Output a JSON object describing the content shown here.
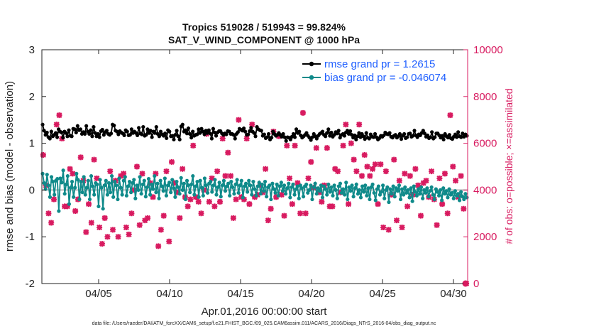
{
  "chart_data": {
    "type": "line",
    "title": "Tropics 519028 / 519943 = 99.824%",
    "subtitle": "SAT_V_WIND_COMPONENT @ 1000 hPa",
    "xlabel": "Apr.01,2016 00:00:00 start",
    "ylabel": "rmse and bias (model - observation)",
    "ylabel_right": "# of obs: o=possible; ×=assimilated",
    "xlim": [
      1,
      31
    ],
    "ylim": [
      -2,
      3
    ],
    "ylim_right": [
      0,
      10000
    ],
    "x_ticks": [
      5,
      10,
      15,
      20,
      25,
      30
    ],
    "x_tick_labels": [
      "04/05",
      "04/10",
      "04/15",
      "04/20",
      "04/25",
      "04/30"
    ],
    "y_ticks": [
      -2,
      -1,
      0,
      1,
      2,
      3
    ],
    "y_tick_labels": [
      "-2",
      "-1",
      "0",
      "1",
      "2",
      "3"
    ],
    "y_ticks_right": [
      0,
      2000,
      4000,
      6000,
      8000,
      10000
    ],
    "y_tick_labels_right": [
      "0",
      "2000",
      "4000",
      "6000",
      "8000",
      "10000"
    ],
    "footnote": "data file: /Users/raeder/DAI/ATM_forcXX/CAM6_setup/f.e21.FHIST_BGC.f09_025.CAM6assim.011/ACARS_2016/Diags_NTrS_2016-04/obs_diag_output.nc",
    "legend_position": "top-right",
    "series": [
      {
        "name": "rmse grand pr = 1.2615",
        "axis": "left",
        "color": "#000000",
        "values": [
          1.4,
          1.27,
          1.18,
          1.23,
          1.13,
          1.1,
          1.25,
          1.15,
          1.18,
          1.22,
          1.13,
          1.3,
          1.25,
          1.23,
          1.12,
          1.25,
          1.22,
          1.15,
          1.28,
          1.16,
          1.15,
          1.31,
          1.3,
          1.23,
          1.37,
          1.28,
          1.3,
          1.2,
          1.24,
          1.2,
          1.37,
          1.25,
          1.2,
          1.28,
          1.15,
          1.35,
          1.22,
          1.15,
          1.2,
          1.13,
          1.26,
          1.29,
          1.18,
          1.24,
          1.27,
          1.2,
          1.18,
          1.21,
          1.4,
          1.38,
          1.27,
          1.25,
          1.19,
          1.26,
          1.23,
          1.21,
          1.17,
          1.28,
          1.25,
          1.17,
          1.18,
          1.3,
          1.22,
          1.25,
          1.22,
          1.17,
          1.33,
          1.21,
          1.19,
          1.35,
          1.16,
          1.18,
          1.3,
          1.22,
          1.27,
          1.13,
          1.25,
          1.22,
          1.35,
          1.2,
          1.15,
          1.25,
          1.19,
          1.16,
          1.21,
          1.11,
          1.28,
          1.25,
          1.15,
          1.16,
          1.08,
          1.18,
          1.27,
          1.15,
          1.08,
          1.36,
          1.4,
          1.25,
          1.28,
          1.21,
          1.32,
          1.2,
          1.12,
          1.25,
          1.16,
          1.18,
          1.19,
          1.3,
          1.22,
          1.31,
          1.25,
          1.19,
          1.27,
          1.22,
          1.28,
          1.21,
          1.1,
          1.31,
          1.23,
          1.16,
          1.23,
          1.26,
          1.26,
          1.21,
          1.18,
          1.21,
          1.19,
          1.26,
          1.25,
          1.2,
          1.2,
          1.18,
          1.1,
          1.2,
          1.24,
          1.31,
          1.29,
          1.27,
          1.32,
          1.25,
          1.18,
          1.19,
          1.26,
          1.33,
          1.25,
          1.22,
          1.15,
          1.35,
          1.3,
          1.28,
          1.27,
          1.16,
          1.19,
          1.11,
          1.13,
          1.2,
          1.08,
          1.12,
          1.25,
          1.2,
          1.16,
          1.18,
          1.22,
          1.18,
          1.14,
          1.2,
          1.13,
          1.05,
          1.13,
          1.12,
          1.08,
          1.14,
          1.2,
          1.13,
          1.3,
          1.22,
          1.25,
          1.17,
          1.12,
          1.15,
          1.18,
          1.22,
          1.16,
          1.12,
          1.07,
          1.13,
          1.2,
          1.15,
          1.1,
          1.16,
          1.2,
          1.22,
          1.25,
          1.18,
          1.15,
          1.22,
          1.3,
          1.16,
          1.23,
          1.14,
          1.18,
          1.24,
          1.21,
          1.27,
          1.12,
          1.18,
          1.2,
          1.16,
          1.23,
          1.27,
          1.2,
          1.26,
          1.18,
          1.12,
          1.17,
          1.08,
          1.15,
          1.22,
          1.13,
          1.2,
          1.15,
          1.09,
          1.22,
          1.12,
          1.1,
          1.19,
          1.14,
          1.13,
          1.2,
          1.13,
          1.08,
          1.11,
          1.16,
          1.14,
          1.17,
          1.23,
          1.2,
          1.19,
          1.22,
          1.14,
          1.12,
          1.16,
          1.18,
          1.12,
          1.15,
          1.2,
          1.09,
          1.16,
          1.2,
          1.11,
          1.13,
          1.2,
          1.21,
          1.14,
          1.16,
          1.27,
          1.17,
          1.13,
          1.19,
          1.17,
          1.22,
          1.27,
          1.21,
          1.14,
          1.17,
          1.11,
          1.13,
          1.24,
          1.1,
          1.13,
          1.21,
          1.21,
          1.17,
          1.12,
          1.16,
          1.08,
          1.2,
          1.15,
          1.12,
          1.18,
          1.11,
          1.09,
          1.14,
          1.19,
          1.13,
          1.24,
          1.15,
          1.13,
          1.21,
          1.14,
          1.19,
          1.16
        ]
      },
      {
        "name": "bias grand pr = -0.046074",
        "axis": "left",
        "color": "#0f8a8a",
        "values": [
          0.35,
          0.15,
          0.02,
          0.33,
          0.1,
          -0.15,
          0.28,
          0.18,
          -0.1,
          0.2,
          0.24,
          -0.45,
          0.25,
          0.16,
          0.42,
          -0.08,
          0.12,
          0.3,
          -0.3,
          0.05,
          0.18,
          -0.15,
          0.05,
          0.35,
          0.22,
          -0.2,
          0.18,
          -0.05,
          0.28,
          -0.1,
          0.05,
          0.2,
          -0.2,
          0.3,
          0.08,
          -0.1,
          0.15,
          0.12,
          -0.35,
          0.22,
          0.05,
          -0.4,
          0.1,
          0.2,
          -0.1,
          0.15,
          -0.05,
          0.3,
          -0.15,
          0.18,
          0.1,
          -0.2,
          0.25,
          0.05,
          -0.1,
          0.2,
          0.28,
          -0.12,
          0.08,
          0.18,
          -0.05,
          0.15,
          0.22,
          -0.18,
          0.1,
          0.0,
          0.28,
          -0.08,
          0.12,
          0.2,
          -0.14,
          0.06,
          0.24,
          -0.1,
          0.12,
          0.02,
          0.3,
          -0.05,
          0.14,
          -0.18,
          0.2,
          0.08,
          -0.02,
          0.25,
          -0.12,
          0.1,
          0.16,
          -0.05,
          0.22,
          0.04,
          -0.15,
          0.18,
          0.06,
          -0.08,
          0.26,
          0.0,
          0.14,
          -0.2,
          0.2,
          0.1,
          -0.05,
          0.12,
          0.3,
          -0.1,
          0.08,
          0.18,
          -0.15,
          0.2,
          0.05,
          -0.12,
          0.25,
          0.1,
          -0.06,
          0.14,
          0.18,
          -0.04,
          0.1,
          0.22,
          -0.1,
          0.06,
          0.16,
          -0.14,
          0.1,
          0.2,
          -0.02,
          0.08,
          0.14,
          -0.12,
          0.18,
          0.06,
          -0.08,
          0.12,
          0.22,
          -0.06,
          0.1,
          0.2,
          -0.16,
          0.08,
          0.14,
          -0.04,
          0.2,
          0.1,
          -0.1,
          0.18,
          0.02,
          -0.12,
          0.08,
          0.16,
          -0.08,
          0.12,
          -0.02,
          0.18,
          -0.14,
          0.06,
          0.1,
          -0.2,
          0.14,
          0.02,
          -0.06,
          0.12,
          -0.12,
          0.08,
          0.16,
          -0.02,
          0.1,
          -0.08,
          0.04,
          0.14,
          -0.16,
          0.06,
          0.12,
          -0.1,
          0.02,
          0.08,
          -0.18,
          0.1,
          0.04,
          -0.14,
          0.08,
          0.12,
          -0.06,
          0.0,
          0.1,
          -0.2,
          0.06,
          0.14,
          -0.08,
          0.04,
          -0.02,
          0.1,
          -0.16,
          0.08,
          0.02,
          -0.1,
          0.12,
          -0.04,
          0.06,
          -0.12,
          0.1,
          0.0,
          -0.18,
          0.08,
          0.14,
          -0.06,
          0.02,
          -0.1,
          0.16,
          -0.2,
          0.06,
          -0.02,
          0.1,
          -0.14,
          0.04,
          0.12,
          -0.08,
          0.0,
          -0.16,
          0.08,
          -0.04,
          0.1,
          -0.12,
          0.04,
          -0.2,
          0.06,
          0.12,
          -0.06,
          -0.22,
          0.02,
          0.08,
          -0.1,
          -0.04,
          0.1,
          -0.18,
          0.0,
          0.06,
          -0.26,
          0.02,
          -0.08,
          0.08,
          -0.14,
          0.04,
          -0.02,
          0.1,
          -0.2,
          0.02,
          -0.1,
          0.06,
          -0.06,
          0.0,
          -0.16,
          0.04,
          -0.24,
          0.08,
          -0.04,
          -0.12,
          0.02,
          -0.08,
          0.06,
          -0.18,
          0.0,
          -0.06,
          0.04,
          -0.14,
          -0.02,
          0.06,
          -0.1,
          -0.2,
          0.02,
          -0.04,
          -0.12,
          0.0,
          -0.22,
          0.04,
          -0.08,
          -0.02,
          -0.16,
          0.02,
          -0.1,
          -0.06,
          -0.18,
          -0.02,
          -0.12,
          -0.08,
          -0.22,
          -0.04,
          -0.14,
          -0.2,
          -0.08,
          -0.16
        ]
      },
      {
        "name": "# of obs assimilated",
        "axis": "right",
        "color": "#d81b60",
        "marker": "x",
        "values": [
          5500,
          4200,
          3000,
          2600,
          3600,
          6800,
          7200,
          6200,
          3300,
          3300,
          4900,
          4700,
          3100,
          3600,
          5400,
          4400,
          2200,
          3400,
          2600,
          5300,
          4500,
          2400,
          1700,
          2800,
          2000,
          4800,
          2300,
          4400,
          2000,
          4600,
          4700,
          2400,
          2100,
          3000,
          4000,
          5000,
          2500,
          4700,
          2700,
          2800,
          4300,
          3700,
          4700,
          1600,
          2300,
          2900,
          4800,
          1800,
          5200,
          4300,
          3900,
          2800,
          4900,
          3700,
          3300,
          3600,
          5900,
          3700,
          3500,
          3000,
          4000,
          6400,
          3500,
          4500,
          3300,
          4800,
          3500,
          6200,
          4600,
          5600,
          4600,
          2800,
          3600,
          7000,
          3700,
          3600,
          6200,
          3400,
          6800,
          3700,
          3800,
          4200,
          3900,
          4900,
          2700,
          3200,
          6500,
          3700,
          6300,
          3800,
          2900,
          5900,
          4500,
          3400,
          5900,
          4300,
          3000,
          7300,
          3000,
          4500,
          5200,
          4100,
          5800,
          3900,
          3500,
          4200,
          5800,
          3300,
          3300,
          4900,
          4800,
          3900,
          5900,
          6800,
          3400,
          6000,
          5300,
          4800,
          6800,
          4600,
          5500,
          5000,
          4600,
          4900,
          5100,
          3400,
          5100,
          2400,
          4800,
          2300,
          3800,
          5300,
          2700,
          4400,
          2400,
          4700,
          3300,
          4600,
          3800,
          4900,
          4200,
          2900,
          4300,
          4400,
          3700,
          4800,
          3600,
          2500,
          4500,
          3400,
          4700,
          3000,
          7200,
          5000,
          4400,
          3700,
          4600,
          3200,
          0
        ]
      },
      {
        "name": "# of obs possible",
        "axis": "right",
        "color": "#d81b60",
        "marker": "o",
        "values": [
          0
        ]
      }
    ]
  }
}
